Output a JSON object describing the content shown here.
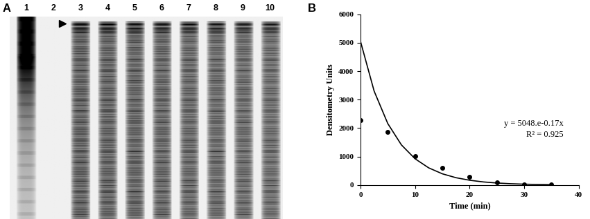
{
  "panel_a": {
    "label": "A",
    "lanes": [
      "1",
      "2",
      "3",
      "4",
      "5",
      "6",
      "7",
      "8",
      "9",
      "10"
    ]
  },
  "chart_data": {
    "type": "scatter",
    "label": "B",
    "x_label": "Time (min)",
    "y_label": "Densitometry Units",
    "xlim": [
      0,
      40
    ],
    "xticks": [
      0,
      10,
      20,
      30,
      40
    ],
    "ylim": [
      0,
      6000
    ],
    "yticks": [
      0,
      1000,
      2000,
      3000,
      4000,
      5000,
      6000
    ],
    "grid": false,
    "annotations": [
      "y = 5048.e-0.17x",
      "R² = 0.925"
    ],
    "series": [
      {
        "type": "scatter",
        "color": "#000000",
        "marker": "o",
        "x": [
          0,
          5,
          10,
          15,
          20,
          25,
          30,
          35
        ],
        "values": [
          2280,
          1870,
          1010,
          610,
          280,
          100,
          20,
          10
        ]
      },
      {
        "type": "line",
        "color": "#000000",
        "line_style": "solid",
        "x": [
          0,
          2.5,
          5,
          7.5,
          10,
          12.5,
          15,
          17.5,
          20,
          22.5,
          25,
          27.5,
          30,
          32.5,
          35
        ],
        "values": [
          5048,
          3300,
          2160,
          1410,
          923,
          604,
          395,
          258,
          169,
          110,
          72,
          47,
          31,
          20,
          13
        ]
      }
    ]
  }
}
